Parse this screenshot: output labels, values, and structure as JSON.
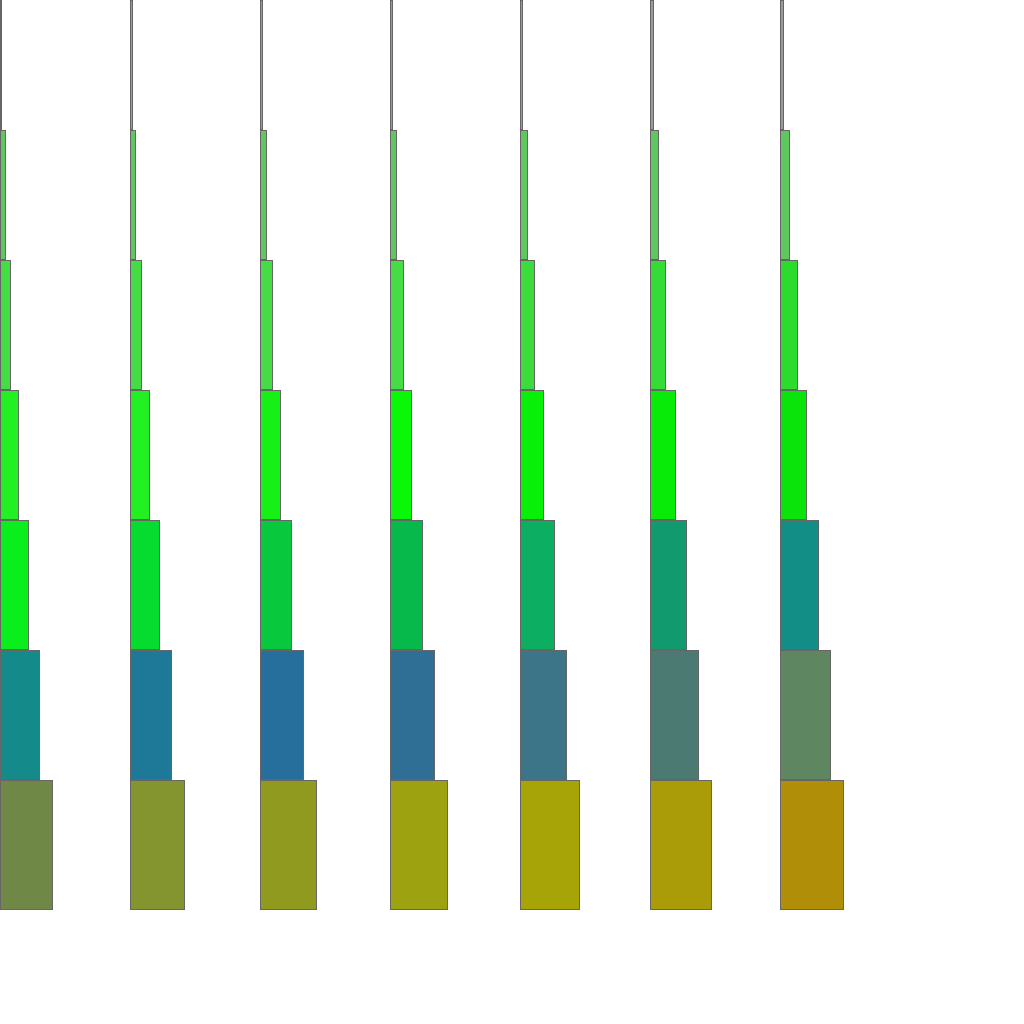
{
  "figure": {
    "background": "#ffffff",
    "border_color": "#666666",
    "columns": [
      {
        "colors": [
          "#9a9a9a",
          "#5ec85e",
          "#45dc45",
          "#22f022",
          "#0aee1e",
          "#158a8a",
          "#708845"
        ]
      },
      {
        "colors": [
          "#9a9a9a",
          "#5ec85e",
          "#45dc45",
          "#22f022",
          "#06dc30",
          "#1e7898",
          "#849530"
        ]
      },
      {
        "colors": [
          "#9a9a9a",
          "#5ec85e",
          "#45dc45",
          "#16f016",
          "#08c83e",
          "#266f9c",
          "#909a1e"
        ]
      },
      {
        "colors": [
          "#9a9a9a",
          "#5ec85e",
          "#45dc45",
          "#08f808",
          "#07b84a",
          "#2f6f95",
          "#9ca210"
        ]
      },
      {
        "colors": [
          "#9a9a9a",
          "#5ec85e",
          "#3cdc3c",
          "#08f008",
          "#0cae62",
          "#3c7588",
          "#a6a406"
        ]
      },
      {
        "colors": [
          "#9a9a9a",
          "#5ec85e",
          "#35dc35",
          "#08ea08",
          "#119a6e",
          "#4a7a72",
          "#aa9b08"
        ]
      },
      {
        "colors": [
          "#9a9a9a",
          "#5ec85e",
          "#2cdc2c",
          "#0ae40a",
          "#138e86",
          "#5e8660",
          "#b08e08"
        ]
      }
    ]
  }
}
